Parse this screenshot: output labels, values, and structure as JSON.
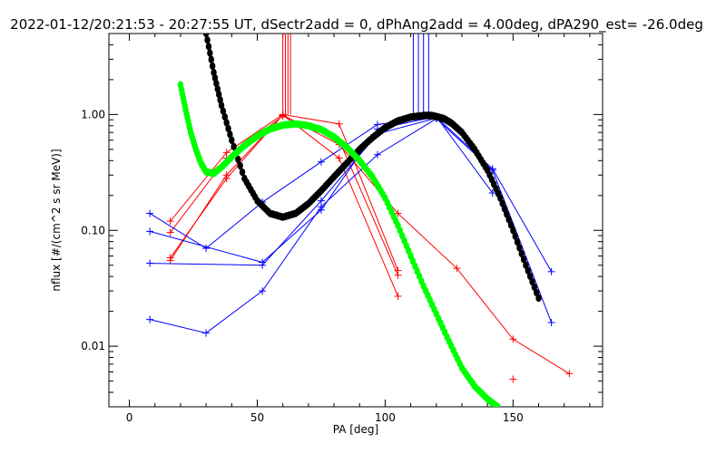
{
  "chart_data": {
    "type": "scatter",
    "title": "2022-01-12/20:21:53 - 20:27:55 UT, dSectr2add = 0, dPhAng2add = 4.00deg, dPA290_est= -26.0deg",
    "xlabel": "PA [deg]",
    "ylabel": "nflux [#/(cm^2 s sr MeV)]",
    "xlim": [
      -8,
      185
    ],
    "ylim": [
      0.003,
      5.0
    ],
    "yscale": "log",
    "x_ticks": [
      0,
      50,
      100,
      150
    ],
    "x_tick_labels": [
      "0",
      "50",
      "100",
      "150"
    ],
    "y_ticks": [
      0.01,
      0.1,
      1.0
    ],
    "y_tick_labels": [
      "0.01",
      "0.10",
      "1.00"
    ],
    "grid": false,
    "legend": "none",
    "red_markers_x": [
      60,
      61,
      62,
      63
    ],
    "blue_markers_x": [
      111,
      113,
      115,
      117
    ],
    "series": [
      {
        "color": "#ff0000",
        "x": [
          16,
          38,
          60,
          82,
          105
        ],
        "y": [
          0.12,
          0.47,
          1.0,
          0.83,
          0.045
        ]
      },
      {
        "color": "#ff0000",
        "x": [
          16,
          38,
          60,
          82,
          105
        ],
        "y": [
          0.096,
          0.42,
          0.97,
          0.6,
          0.041
        ]
      },
      {
        "color": "#ff0000",
        "x": [
          16,
          38,
          60,
          82,
          105
        ],
        "y": [
          0.058,
          0.28,
          0.99,
          0.42,
          0.027
        ]
      },
      {
        "color": "#ff0000",
        "x": [
          16,
          38,
          60,
          82,
          105,
          128,
          150,
          172
        ],
        "y": [
          0.055,
          0.3,
          0.99,
          0.55,
          0.14,
          0.047,
          0.0115,
          0.0058
        ]
      },
      {
        "color": "#ff0000",
        "x": [
          150
        ],
        "y": [
          0.0052
        ]
      },
      {
        "color": "#0000ff",
        "x": [
          8,
          30,
          52,
          75,
          97,
          120,
          142,
          165
        ],
        "y": [
          0.14,
          0.07,
          0.175,
          0.39,
          0.82,
          0.95,
          0.34,
          0.044
        ]
      },
      {
        "color": "#0000ff",
        "x": [
          8,
          30,
          52,
          75,
          97,
          120,
          142,
          165
        ],
        "y": [
          0.017,
          0.013,
          0.03,
          0.16,
          0.45,
          0.92,
          0.33,
          0.016
        ]
      },
      {
        "color": "#0000ff",
        "x": [
          8,
          52,
          75,
          97,
          120,
          142
        ],
        "y": [
          0.098,
          0.053,
          0.15,
          0.75,
          0.96,
          0.21
        ]
      },
      {
        "color": "#0000ff",
        "x": [
          8,
          52,
          75,
          97,
          120
        ],
        "y": [
          0.052,
          0.05,
          0.18,
          0.68,
          0.93
        ]
      },
      {
        "color": "#000000",
        "kind": "fit",
        "x": [
          30,
          33,
          36,
          40,
          45,
          50,
          55,
          60,
          65,
          70,
          75,
          80,
          85,
          90,
          95,
          100,
          105,
          110,
          115,
          118,
          120,
          123,
          126,
          130,
          135,
          140,
          145,
          150,
          155,
          160
        ],
        "y": [
          5.0,
          2.3,
          1.2,
          0.6,
          0.28,
          0.18,
          0.14,
          0.13,
          0.14,
          0.17,
          0.22,
          0.29,
          0.38,
          0.5,
          0.63,
          0.77,
          0.88,
          0.95,
          0.98,
          0.98,
          0.96,
          0.92,
          0.84,
          0.7,
          0.5,
          0.33,
          0.19,
          0.1,
          0.05,
          0.026
        ]
      },
      {
        "color": "#00ff00",
        "kind": "fit",
        "x": [
          20,
          22,
          24,
          26,
          28,
          30,
          33,
          36,
          40,
          45,
          50,
          55,
          60,
          65,
          70,
          75,
          80,
          85,
          90,
          95,
          100,
          105,
          110,
          115,
          120,
          125,
          130,
          135,
          140,
          144
        ],
        "y": [
          1.8,
          1.1,
          0.7,
          0.5,
          0.38,
          0.32,
          0.31,
          0.35,
          0.43,
          0.54,
          0.65,
          0.75,
          0.81,
          0.83,
          0.8,
          0.74,
          0.64,
          0.52,
          0.4,
          0.29,
          0.19,
          0.11,
          0.06,
          0.033,
          0.019,
          0.011,
          0.0065,
          0.0045,
          0.0035,
          0.003
        ]
      }
    ]
  }
}
